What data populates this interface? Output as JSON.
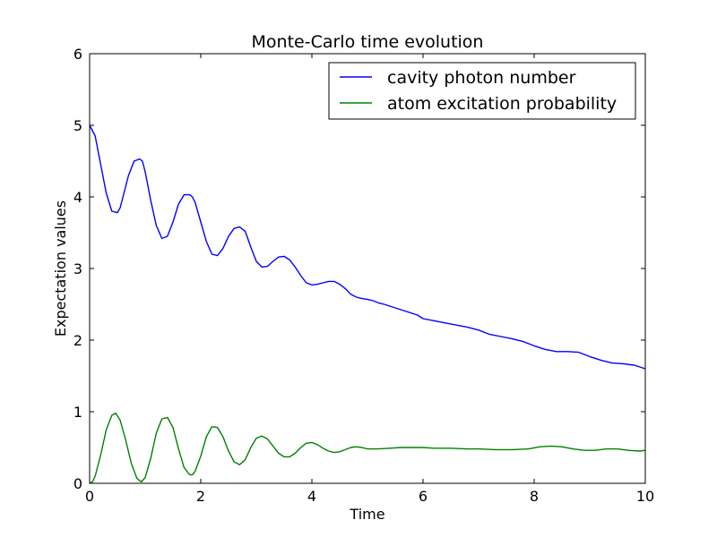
{
  "chart_data": {
    "type": "line",
    "title": "Monte-Carlo time evolution",
    "xlabel": "Time",
    "ylabel": "Expectation values",
    "xlim": [
      0,
      10
    ],
    "ylim": [
      0,
      6
    ],
    "xticks": [
      0,
      2,
      4,
      6,
      8,
      10
    ],
    "yticks": [
      0,
      1,
      2,
      3,
      4,
      5,
      6
    ],
    "grid": false,
    "legend": "top-right",
    "series": [
      {
        "name": "cavity photon number",
        "color": "#0000ff",
        "x": [
          0,
          0.1,
          0.2,
          0.3,
          0.4,
          0.5,
          0.55,
          0.6,
          0.7,
          0.8,
          0.9,
          0.95,
          1.0,
          1.1,
          1.2,
          1.3,
          1.4,
          1.5,
          1.6,
          1.7,
          1.8,
          1.85,
          1.9,
          2.0,
          2.1,
          2.2,
          2.3,
          2.4,
          2.5,
          2.6,
          2.7,
          2.8,
          2.9,
          3.0,
          3.1,
          3.2,
          3.3,
          3.4,
          3.5,
          3.6,
          3.7,
          3.8,
          3.9,
          4.0,
          4.1,
          4.2,
          4.3,
          4.4,
          4.5,
          4.6,
          4.7,
          4.8,
          4.9,
          5.0,
          5.1,
          5.2,
          5.3,
          5.5,
          5.7,
          5.9,
          6.0,
          6.2,
          6.4,
          6.6,
          6.8,
          7.0,
          7.2,
          7.4,
          7.6,
          7.8,
          8.0,
          8.2,
          8.4,
          8.6,
          8.8,
          9.0,
          9.2,
          9.4,
          9.6,
          9.8,
          10.0
        ],
        "y": [
          5.0,
          4.85,
          4.45,
          4.05,
          3.8,
          3.78,
          3.85,
          4.0,
          4.3,
          4.5,
          4.53,
          4.5,
          4.35,
          3.95,
          3.6,
          3.42,
          3.45,
          3.65,
          3.9,
          4.03,
          4.03,
          4.0,
          3.92,
          3.65,
          3.38,
          3.2,
          3.18,
          3.28,
          3.45,
          3.56,
          3.58,
          3.52,
          3.3,
          3.1,
          3.02,
          3.03,
          3.1,
          3.16,
          3.17,
          3.12,
          3.02,
          2.9,
          2.8,
          2.77,
          2.78,
          2.8,
          2.82,
          2.82,
          2.78,
          2.72,
          2.64,
          2.6,
          2.58,
          2.57,
          2.55,
          2.52,
          2.5,
          2.45,
          2.4,
          2.35,
          2.3,
          2.27,
          2.24,
          2.21,
          2.18,
          2.14,
          2.08,
          2.05,
          2.02,
          1.98,
          1.92,
          1.87,
          1.84,
          1.84,
          1.83,
          1.77,
          1.72,
          1.68,
          1.67,
          1.65,
          1.6
        ]
      },
      {
        "name": "atom excitation probability",
        "color": "#008000",
        "x": [
          0,
          0.05,
          0.1,
          0.2,
          0.3,
          0.4,
          0.47,
          0.55,
          0.65,
          0.75,
          0.85,
          0.93,
          1.0,
          1.1,
          1.2,
          1.3,
          1.4,
          1.5,
          1.6,
          1.7,
          1.8,
          1.85,
          1.9,
          2.0,
          2.1,
          2.2,
          2.3,
          2.4,
          2.5,
          2.6,
          2.7,
          2.8,
          2.9,
          3.0,
          3.1,
          3.2,
          3.3,
          3.4,
          3.5,
          3.6,
          3.7,
          3.8,
          3.9,
          4.0,
          4.1,
          4.2,
          4.3,
          4.4,
          4.5,
          4.6,
          4.7,
          4.8,
          4.9,
          5.0,
          5.2,
          5.4,
          5.6,
          5.8,
          6.0,
          6.2,
          6.5,
          6.8,
          7.0,
          7.3,
          7.6,
          7.9,
          8.1,
          8.3,
          8.5,
          8.7,
          8.9,
          9.1,
          9.3,
          9.5,
          9.7,
          9.9,
          10.0
        ],
        "y": [
          0.0,
          0.02,
          0.1,
          0.4,
          0.75,
          0.95,
          0.98,
          0.88,
          0.6,
          0.28,
          0.07,
          0.02,
          0.08,
          0.35,
          0.7,
          0.9,
          0.92,
          0.78,
          0.48,
          0.22,
          0.12,
          0.12,
          0.17,
          0.38,
          0.65,
          0.79,
          0.78,
          0.65,
          0.45,
          0.3,
          0.26,
          0.33,
          0.5,
          0.63,
          0.66,
          0.62,
          0.52,
          0.42,
          0.37,
          0.37,
          0.42,
          0.5,
          0.56,
          0.57,
          0.54,
          0.49,
          0.45,
          0.43,
          0.44,
          0.47,
          0.5,
          0.51,
          0.5,
          0.48,
          0.48,
          0.49,
          0.5,
          0.5,
          0.5,
          0.49,
          0.49,
          0.48,
          0.48,
          0.47,
          0.47,
          0.48,
          0.51,
          0.52,
          0.51,
          0.48,
          0.46,
          0.46,
          0.48,
          0.48,
          0.46,
          0.45,
          0.46
        ]
      }
    ]
  }
}
